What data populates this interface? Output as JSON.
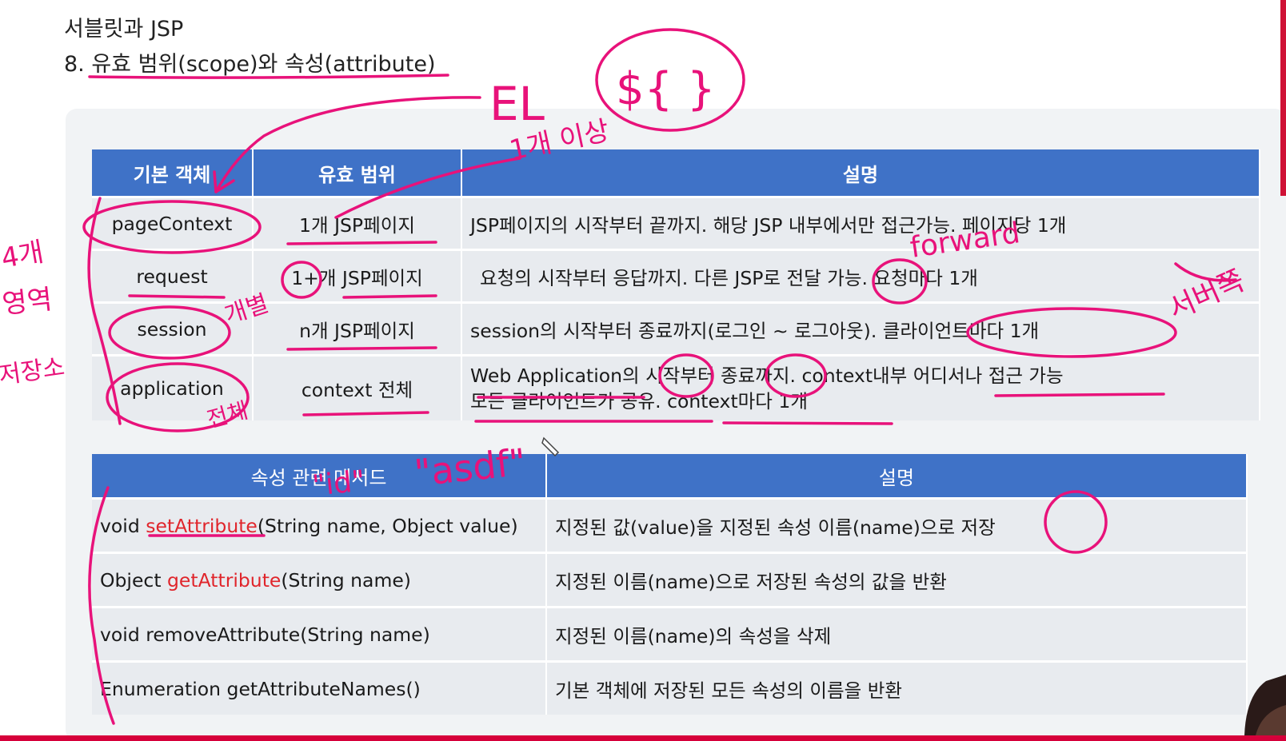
{
  "header": {
    "line1": "서블릿과 JSP",
    "line2": "8. 유효 범위(scope)와 속성(attribute)"
  },
  "scope_table": {
    "headers": [
      "기본 객체",
      "유효 범위",
      "설명"
    ],
    "rows": [
      {
        "object": "pageContext",
        "scope": "1개 JSP페이지",
        "desc": "JSP페이지의 시작부터 끝까지. 해당 JSP 내부에서만 접근가능. 페이지당 1개"
      },
      {
        "object": "request",
        "scope": "1+개 JSP페이지",
        "desc": "요청의 시작부터 응답까지. 다른 JSP로 전달 가능. 요청마다 1개"
      },
      {
        "object": "session",
        "scope": "n개 JSP페이지",
        "desc": "session의 시작부터 종료까지(로그인 ~ 로그아웃). 클라이언트마다 1개"
      },
      {
        "object": "application",
        "scope": "context 전체",
        "desc": "Web Application의 시작부터 종료까지. context내부 어디서나 접근 가능",
        "desc2": "모든 클라이언트가 공유. context마다 1개"
      }
    ]
  },
  "method_table": {
    "headers": [
      "속성 관련 메서드",
      "설명"
    ],
    "rows": [
      {
        "pre": "void ",
        "name": "setAttribute",
        "post": "(String name, Object value)",
        "desc": "지정된 값(value)을 지정된 속성 이름(name)으로 저장"
      },
      {
        "pre": "Object ",
        "name": "getAttribute",
        "post": "(String name)",
        "desc": "지정된 이름(name)으로 저장된 속성의 값을 반환"
      },
      {
        "pre": "void removeAttribute(String name)",
        "name": "",
        "post": "",
        "desc": "지정된 이름(name)의 속성을 삭제"
      },
      {
        "pre": "Enumeration getAttributeNames()",
        "name": "",
        "post": "",
        "desc": "기본 객체에 저장된 모든 속성의 이름을 반환"
      }
    ]
  },
  "annotations": {
    "el": "EL",
    "el_syntax": "${ }",
    "one_or_more": "1개 이상",
    "forward": "forward",
    "individual": "개별",
    "whole": "전체",
    "server_side": "서버쪽",
    "left_note": [
      "4개",
      "영역",
      "저장소"
    ],
    "id_literal": "\"id\"",
    "asdf_literal": "\"asdf\""
  },
  "colors": {
    "header_bg": "#3f72c7",
    "row_bg": "#e8ebef",
    "method_name": "#e0252b",
    "annotation_pen": "#e8127a",
    "bottom_bar": "#d6003a"
  }
}
